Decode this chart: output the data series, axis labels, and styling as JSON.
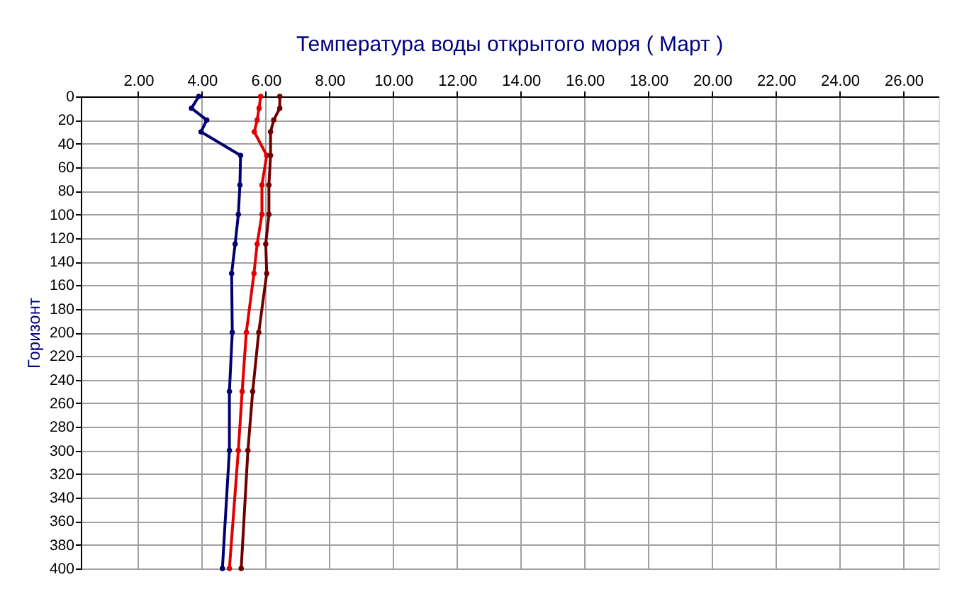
{
  "chart_data": {
    "type": "line",
    "title": "Температура воды открытого моря     ( Март )",
    "ylabel": "Горизонт",
    "xlim": [
      0.2,
      27.1
    ],
    "ylim": [
      400,
      0
    ],
    "xticks": [
      {
        "value": 2,
        "label": "2.00"
      },
      {
        "value": 4,
        "label": "4.00"
      },
      {
        "value": 6,
        "label": "6.00"
      },
      {
        "value": 8,
        "label": "8.00"
      },
      {
        "value": 10,
        "label": "10.00"
      },
      {
        "value": 12,
        "label": "12.00"
      },
      {
        "value": 14,
        "label": "14.00"
      },
      {
        "value": 16,
        "label": "16.00"
      },
      {
        "value": 18,
        "label": "18.00"
      },
      {
        "value": 20,
        "label": "20.00"
      },
      {
        "value": 22,
        "label": "22.00"
      },
      {
        "value": 24,
        "label": "24.00"
      },
      {
        "value": 26,
        "label": "26.00"
      }
    ],
    "yticks": [
      0,
      20,
      40,
      60,
      80,
      100,
      120,
      140,
      160,
      180,
      200,
      220,
      240,
      260,
      280,
      300,
      320,
      340,
      360,
      380,
      400
    ],
    "grid": true,
    "legend": false,
    "marker": "circle",
    "line_style": "solid",
    "series": [
      {
        "color": "#000070",
        "x": [
          3.9,
          3.67,
          4.15,
          3.97,
          5.21,
          5.19,
          5.14,
          5.04,
          4.93,
          4.95,
          4.86,
          4.86,
          4.64
        ],
        "values": [
          0,
          10,
          20,
          30,
          50,
          75,
          100,
          125,
          150,
          200,
          250,
          300,
          400
        ]
      },
      {
        "color": "#e00000",
        "x": [
          5.84,
          5.79,
          5.73,
          5.64,
          6.03,
          5.88,
          5.88,
          5.73,
          5.63,
          5.39,
          5.26,
          5.14,
          4.86
        ],
        "values": [
          0,
          10,
          20,
          30,
          50,
          75,
          100,
          125,
          150,
          200,
          250,
          300,
          400
        ]
      },
      {
        "color": "#700000",
        "x": [
          6.44,
          6.44,
          6.25,
          6.15,
          6.15,
          6.1,
          6.1,
          6.0,
          6.03,
          5.78,
          5.59,
          5.44,
          5.23
        ],
        "values": [
          0,
          10,
          20,
          30,
          50,
          75,
          100,
          125,
          150,
          200,
          250,
          300,
          400
        ]
      }
    ]
  }
}
